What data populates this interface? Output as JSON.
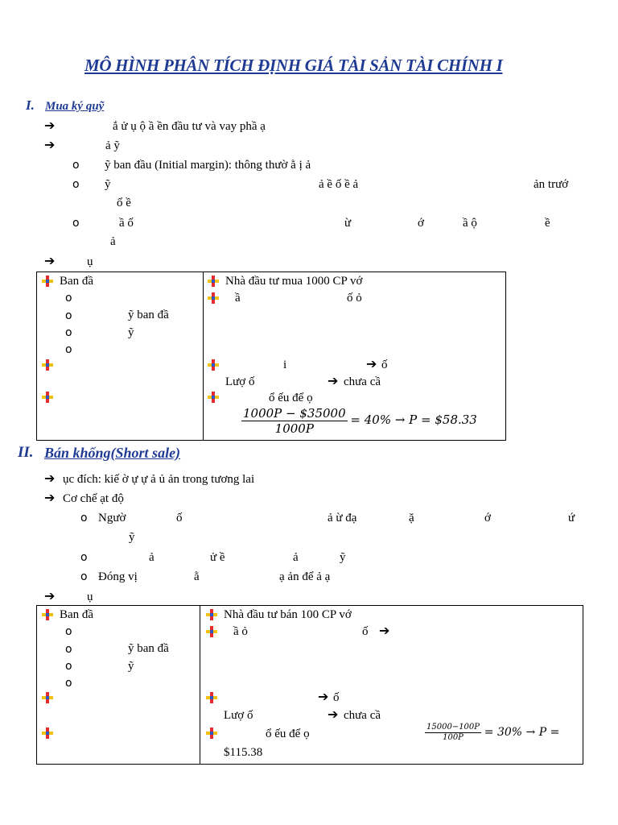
{
  "title": "MÔ HÌNH PHÂN TÍCH ĐỊNH GIÁ TÀI SẢN TÀI CHÍNH I",
  "colors": {
    "heading": "#1f3a93",
    "plus_red": "#e52b2b",
    "plus_yellow": "#f4c20d",
    "plus_blue": "#2a55c9"
  },
  "icons": {
    "arrow": "➔",
    "circle": "o",
    "plus": "plus-icon"
  },
  "section1": {
    "number": "I.",
    "heading": "Mua ký quỹ",
    "lines": {
      "a1": "ắ      ử   ụ          ộ        ầ      ền đầu tư và vay phầ           ạ",
      "a2": "ả            ỹ",
      "c1": "ỹ ban đầu (Initial margin): thông thườ          ằ                            ị             ả",
      "c2a": "ỹ",
      "c2b": "ả        ề        ố          ề          ả",
      "c2c": "ản trướ",
      "c2d": "ổ                    ề",
      "c3a": "ầ                 ố",
      "c3b": "ừ",
      "c3c": "ớ",
      "c3d": "ầ      ộ",
      "c3e": "ề",
      "c3f": "ả",
      "a3": "ụ"
    },
    "table": {
      "left": {
        "l1": "Ban đầ",
        "l3": "ỹ ban đầ",
        "l4": "ỹ"
      },
      "right": {
        "r1": "Nhà đầu tư mua 1000 CP vớ",
        "r2a": "ầ",
        "r2b": "ố      ỏ",
        "r3a": "i",
        "r3b": "ố",
        "r4": "Lượ         ố",
        "r4b": "chưa cầ",
        "r5": "ổ      ếu để    ọ",
        "num": "1000P − $35000",
        "den": "1000P",
        "result": "= 40% → P = $58.33"
      }
    }
  },
  "section2": {
    "number": "II.",
    "heading": "Bán khống(Short sale)",
    "lines": {
      "a1": "ục đích: kiế       ờ    ự              ự      ả               ủ          ản trong tương lai",
      "a2": "Cơ chế      ạt độ",
      "b1a": "Ngườ",
      "b1b": "ố",
      "b1c": "ả     ừ đạ",
      "b1d": "ặ",
      "b1e": "ớ",
      "b1f": "ứ",
      "b1g": "ỹ",
      "b2a": "ả",
      "b2b": "ử      ề",
      "b2c": "ả",
      "b2d": "ỹ",
      "b3a": "Đóng vị",
      "b3b": "ằ",
      "b3c": "ạ        ản để    ả   ạ",
      "a3": "ụ"
    },
    "table": {
      "left": {
        "l1": "Ban đầ",
        "l3": "ỹ ban đầ",
        "l4": "ỹ"
      },
      "right": {
        "r1": "Nhà đầu tư bán 100 CP vớ",
        "r2a": "ầ      ỏ",
        "r2b": "ố",
        "r3": "ố",
        "r4": "Lượ           ố",
        "r4b": "chưa cầ",
        "r5": "ổ      ếu để    ọ",
        "num": "15000−100P",
        "den": "100P",
        "result": "= 30% → P =",
        "result2": "$115.38"
      }
    }
  }
}
